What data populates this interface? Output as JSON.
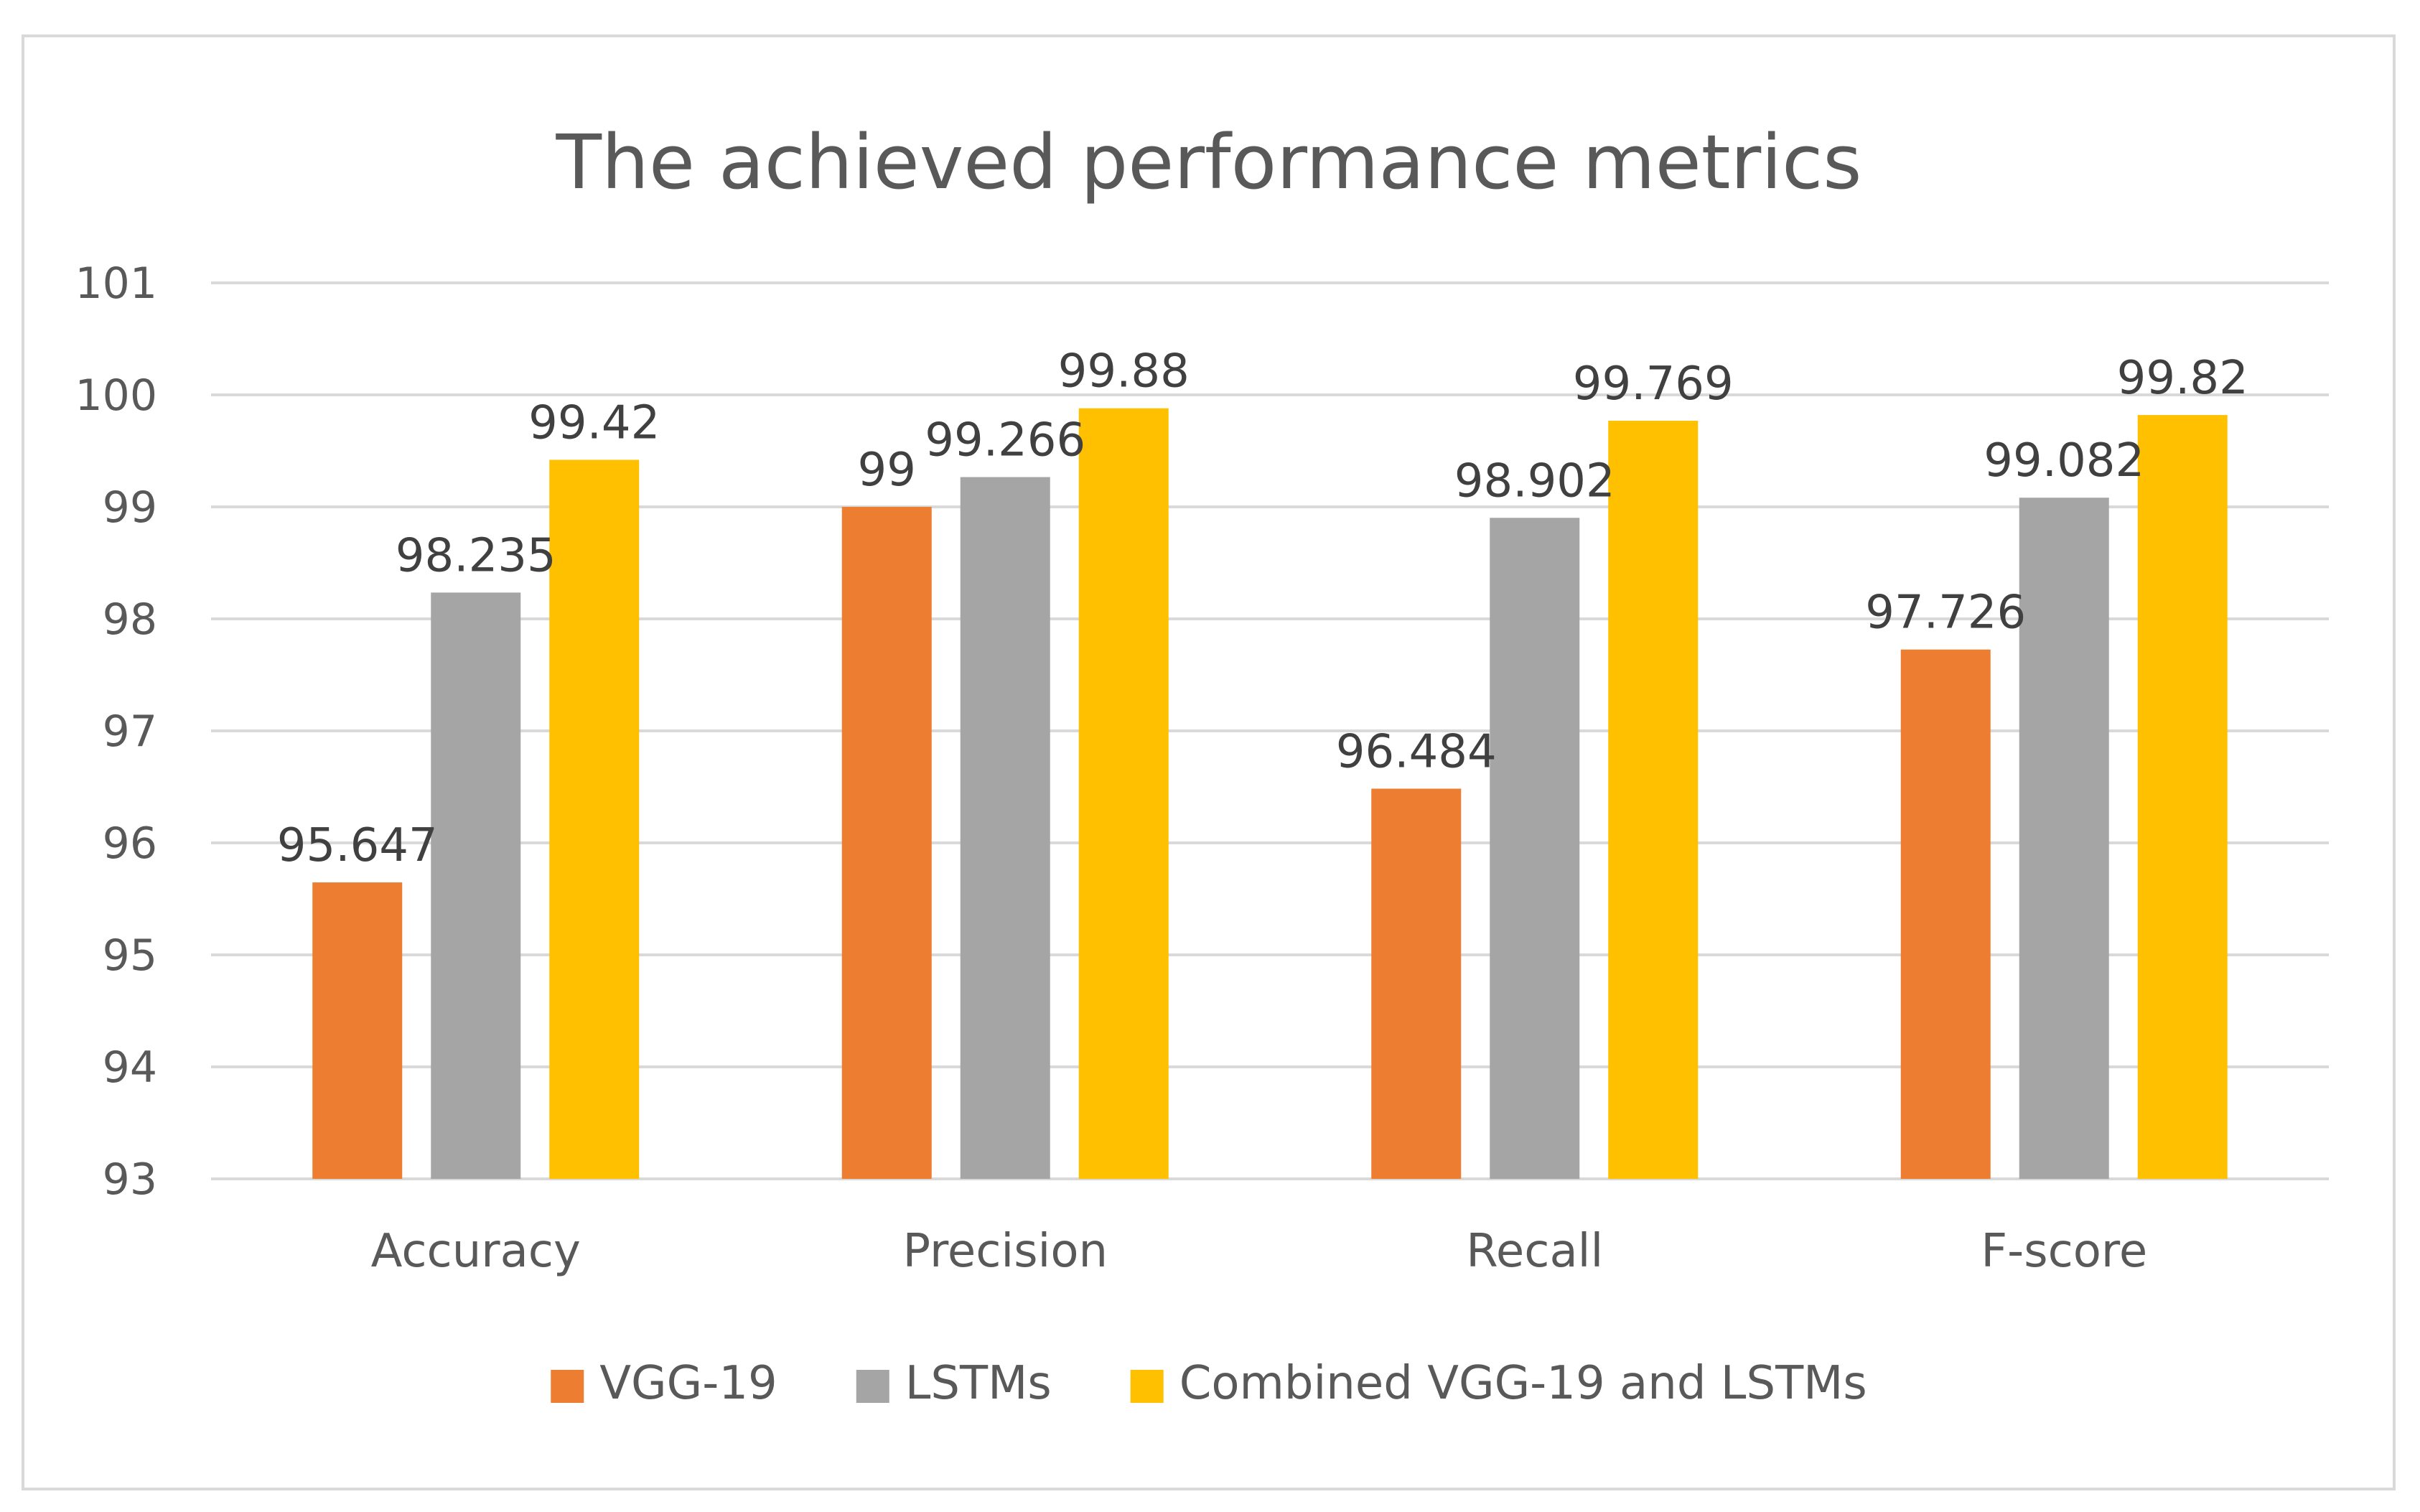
{
  "chart_data": {
    "type": "bar",
    "title": "The achieved performance metrics",
    "xlabel": "",
    "ylabel": "",
    "categories": [
      "Accuracy",
      "Precision",
      "Recall",
      "F-score"
    ],
    "ylim": [
      93,
      101
    ],
    "yticks": [
      93,
      94,
      95,
      96,
      97,
      98,
      99,
      100,
      101
    ],
    "grid": true,
    "legend_position": "bottom",
    "series": [
      {
        "name": "VGG-19",
        "color": "#ED7D31",
        "values": [
          95.647,
          99,
          96.484,
          97.726
        ],
        "labels": [
          "95.647",
          "99",
          "96.484",
          "97.726"
        ]
      },
      {
        "name": "LSTMs",
        "color": "#A5A5A5",
        "values": [
          98.235,
          99.266,
          98.902,
          99.082
        ],
        "labels": [
          "98.235",
          "99.266",
          "98.902",
          "99.082"
        ]
      },
      {
        "name": "Combined VGG-19 and LSTMs",
        "color": "#FFC000",
        "values": [
          99.42,
          99.88,
          99.769,
          99.82
        ],
        "labels": [
          "99.42",
          "99.88",
          "99.769",
          "99.82"
        ]
      }
    ]
  }
}
